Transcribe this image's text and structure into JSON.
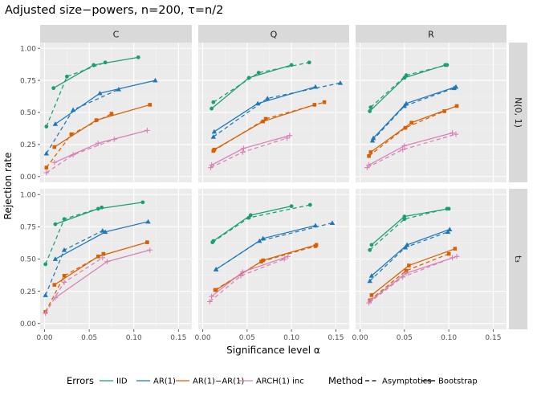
{
  "chart_data": {
    "type": "line",
    "title": "Adjusted size−powers, n=200, τ=n/2",
    "xlabel": "Significance level α",
    "ylabel": "Rejection rate",
    "xlim": [
      -0.005,
      0.165
    ],
    "ylim": [
      -0.045,
      1.045
    ],
    "x_ticks": [
      0.0,
      0.05,
      0.1,
      0.15
    ],
    "x_tick_labels": [
      "0.00",
      "0.05",
      "0.10",
      "0.15"
    ],
    "y_ticks": [
      0.0,
      0.25,
      0.5,
      0.75,
      1.0
    ],
    "y_tick_labels": [
      "0.00",
      "0.25",
      "0.50",
      "0.75",
      "1.00"
    ],
    "grid": true,
    "facet_cols": [
      "C",
      "Q",
      "R"
    ],
    "facet_rows": [
      "N(0, 1)",
      "t₃"
    ],
    "legend": {
      "position": "bottom",
      "errors_title": "Errors",
      "method_title": "Method",
      "errors": [
        {
          "label": "IID",
          "color": "#1b9e77",
          "shape": "circle"
        },
        {
          "label": "AR(1)",
          "color": "#1f78b4",
          "shape": "triangle"
        },
        {
          "label": "AR(1)−AR(1)",
          "color": "#d95f02",
          "shape": "square"
        },
        {
          "label": "ARCH(1) inc",
          "color": "#d97fb6",
          "shape": "plus"
        }
      ],
      "methods": [
        {
          "label": "Asymptotics",
          "dash": true
        },
        {
          "label": "Bootstrap",
          "dash": false
        }
      ]
    },
    "panels": [
      {
        "row": 0,
        "col": 0,
        "series": [
          {
            "error": "IID",
            "method": "Bootstrap",
            "x": [
              0.01,
              0.055,
              0.105
            ],
            "y": [
              0.69,
              0.87,
              0.93
            ]
          },
          {
            "error": "IID",
            "method": "Asymptotics",
            "x": [
              0.002,
              0.025,
              0.068
            ],
            "y": [
              0.39,
              0.78,
              0.89
            ]
          },
          {
            "error": "AR(1)",
            "method": "Bootstrap",
            "x": [
              0.012,
              0.062,
              0.124
            ],
            "y": [
              0.41,
              0.65,
              0.75
            ]
          },
          {
            "error": "AR(1)",
            "method": "Asymptotics",
            "x": [
              0.002,
              0.032,
              0.083
            ],
            "y": [
              0.18,
              0.52,
              0.68
            ]
          },
          {
            "error": "AR(1)−AR(1)",
            "method": "Bootstrap",
            "x": [
              0.011,
              0.058,
              0.118
            ],
            "y": [
              0.23,
              0.44,
              0.56
            ]
          },
          {
            "error": "AR(1)−AR(1)",
            "method": "Asymptotics",
            "x": [
              0.002,
              0.03,
              0.075
            ],
            "y": [
              0.07,
              0.33,
              0.49
            ]
          },
          {
            "error": "ARCH(1) inc",
            "method": "Bootstrap",
            "x": [
              0.011,
              0.06,
              0.115
            ],
            "y": [
              0.11,
              0.26,
              0.36
            ]
          },
          {
            "error": "ARCH(1) inc",
            "method": "Asymptotics",
            "x": [
              0.002,
              0.032,
              0.078
            ],
            "y": [
              0.03,
              0.17,
              0.29
            ]
          }
        ]
      },
      {
        "row": 0,
        "col": 1,
        "series": [
          {
            "error": "IID",
            "method": "Bootstrap",
            "x": [
              0.01,
              0.052,
              0.1
            ],
            "y": [
              0.53,
              0.77,
              0.87
            ]
          },
          {
            "error": "IID",
            "method": "Asymptotics",
            "x": [
              0.012,
              0.063,
              0.12
            ],
            "y": [
              0.58,
              0.81,
              0.89
            ]
          },
          {
            "error": "AR(1)",
            "method": "Bootstrap",
            "x": [
              0.013,
              0.062,
              0.127
            ],
            "y": [
              0.35,
              0.57,
              0.7
            ]
          },
          {
            "error": "AR(1)",
            "method": "Asymptotics",
            "x": [
              0.012,
              0.073,
              0.155
            ],
            "y": [
              0.31,
              0.61,
              0.73
            ]
          },
          {
            "error": "AR(1)−AR(1)",
            "method": "Bootstrap",
            "x": [
              0.013,
              0.068,
              0.126
            ],
            "y": [
              0.21,
              0.43,
              0.56
            ]
          },
          {
            "error": "AR(1)−AR(1)",
            "method": "Asymptotics",
            "x": [
              0.012,
              0.071,
              0.137
            ],
            "y": [
              0.2,
              0.45,
              0.58
            ]
          },
          {
            "error": "ARCH(1) inc",
            "method": "Bootstrap",
            "x": [
              0.01,
              0.046,
              0.098
            ],
            "y": [
              0.09,
              0.22,
              0.32
            ]
          },
          {
            "error": "ARCH(1) inc",
            "method": "Asymptotics",
            "x": [
              0.009,
              0.045,
              0.095
            ],
            "y": [
              0.07,
              0.19,
              0.3
            ]
          }
        ]
      },
      {
        "row": 0,
        "col": 2,
        "series": [
          {
            "error": "IID",
            "method": "Bootstrap",
            "x": [
              0.011,
              0.05,
              0.096
            ],
            "y": [
              0.51,
              0.77,
              0.87
            ]
          },
          {
            "error": "IID",
            "method": "Asymptotics",
            "x": [
              0.012,
              0.052,
              0.098
            ],
            "y": [
              0.54,
              0.79,
              0.87
            ]
          },
          {
            "error": "AR(1)",
            "method": "Bootstrap",
            "x": [
              0.015,
              0.052,
              0.108
            ],
            "y": [
              0.3,
              0.57,
              0.7
            ]
          },
          {
            "error": "AR(1)",
            "method": "Asymptotics",
            "x": [
              0.014,
              0.05,
              0.106
            ],
            "y": [
              0.28,
              0.55,
              0.69
            ]
          },
          {
            "error": "AR(1)−AR(1)",
            "method": "Bootstrap",
            "x": [
              0.012,
              0.058,
              0.109
            ],
            "y": [
              0.19,
              0.42,
              0.55
            ]
          },
          {
            "error": "AR(1)−AR(1)",
            "method": "Asymptotics",
            "x": [
              0.01,
              0.051,
              0.095
            ],
            "y": [
              0.16,
              0.38,
              0.51
            ]
          },
          {
            "error": "ARCH(1) inc",
            "method": "Bootstrap",
            "x": [
              0.01,
              0.05,
              0.104
            ],
            "y": [
              0.09,
              0.24,
              0.34
            ]
          },
          {
            "error": "ARCH(1) inc",
            "method": "Asymptotics",
            "x": [
              0.008,
              0.048,
              0.108
            ],
            "y": [
              0.07,
              0.21,
              0.33
            ]
          }
        ]
      },
      {
        "row": 1,
        "col": 0,
        "series": [
          {
            "error": "IID",
            "method": "Bootstrap",
            "x": [
              0.012,
              0.06,
              0.11
            ],
            "y": [
              0.77,
              0.89,
              0.94
            ]
          },
          {
            "error": "IID",
            "method": "Asymptotics",
            "x": [
              0.001,
              0.022,
              0.064
            ],
            "y": [
              0.46,
              0.81,
              0.9
            ]
          },
          {
            "error": "AR(1)",
            "method": "Bootstrap",
            "x": [
              0.012,
              0.068,
              0.116
            ],
            "y": [
              0.5,
              0.71,
              0.79
            ]
          },
          {
            "error": "AR(1)",
            "method": "Asymptotics",
            "x": [
              0.001,
              0.022,
              0.065
            ],
            "y": [
              0.22,
              0.57,
              0.72
            ]
          },
          {
            "error": "AR(1)−AR(1)",
            "method": "Bootstrap",
            "x": [
              0.011,
              0.06,
              0.115
            ],
            "y": [
              0.3,
              0.52,
              0.63
            ]
          },
          {
            "error": "AR(1)−AR(1)",
            "method": "Asymptotics",
            "x": [
              0.001,
              0.022,
              0.066
            ],
            "y": [
              0.09,
              0.37,
              0.54
            ]
          },
          {
            "error": "ARCH(1) inc",
            "method": "Bootstrap",
            "x": [
              0.012,
              0.07,
              0.118
            ],
            "y": [
              0.2,
              0.48,
              0.57
            ]
          },
          {
            "error": "ARCH(1) inc",
            "method": "Asymptotics",
            "x": [
              0.001,
              0.022,
              0.065
            ],
            "y": [
              0.08,
              0.32,
              0.51
            ]
          }
        ]
      },
      {
        "row": 1,
        "col": 1,
        "series": [
          {
            "error": "IID",
            "method": "Bootstrap",
            "x": [
              0.012,
              0.054,
              0.1
            ],
            "y": [
              0.64,
              0.84,
              0.91
            ]
          },
          {
            "error": "IID",
            "method": "Asymptotics",
            "x": [
              0.011,
              0.052,
              0.121
            ],
            "y": [
              0.63,
              0.82,
              0.92
            ]
          },
          {
            "error": "AR(1)",
            "method": "Bootstrap",
            "x": [
              0.015,
              0.068,
              0.127
            ],
            "y": [
              0.42,
              0.66,
              0.76
            ]
          },
          {
            "error": "AR(1)",
            "method": "Asymptotics",
            "x": [
              0.015,
              0.064,
              0.146
            ],
            "y": [
              0.42,
              0.64,
              0.78
            ]
          },
          {
            "error": "AR(1)−AR(1)",
            "method": "Bootstrap",
            "x": [
              0.015,
              0.068,
              0.128
            ],
            "y": [
              0.26,
              0.49,
              0.61
            ]
          },
          {
            "error": "AR(1)−AR(1)",
            "method": "Asymptotics",
            "x": [
              0.014,
              0.066,
              0.127
            ],
            "y": [
              0.26,
              0.48,
              0.6
            ]
          },
          {
            "error": "ARCH(1) inc",
            "method": "Bootstrap",
            "x": [
              0.01,
              0.045,
              0.096
            ],
            "y": [
              0.21,
              0.4,
              0.52
            ]
          },
          {
            "error": "ARCH(1) inc",
            "method": "Asymptotics",
            "x": [
              0.008,
              0.043,
              0.092
            ],
            "y": [
              0.17,
              0.37,
              0.5
            ]
          }
        ]
      },
      {
        "row": 1,
        "col": 2,
        "series": [
          {
            "error": "IID",
            "method": "Bootstrap",
            "x": [
              0.013,
              0.05,
              0.1
            ],
            "y": [
              0.61,
              0.83,
              0.89
            ]
          },
          {
            "error": "IID",
            "method": "Asymptotics",
            "x": [
              0.011,
              0.05,
              0.098
            ],
            "y": [
              0.57,
              0.81,
              0.89
            ]
          },
          {
            "error": "AR(1)",
            "method": "Bootstrap",
            "x": [
              0.013,
              0.053,
              0.101
            ],
            "y": [
              0.37,
              0.61,
              0.73
            ]
          },
          {
            "error": "AR(1)",
            "method": "Asymptotics",
            "x": [
              0.011,
              0.051,
              0.099
            ],
            "y": [
              0.33,
              0.59,
              0.71
            ]
          },
          {
            "error": "AR(1)−AR(1)",
            "method": "Bootstrap",
            "x": [
              0.013,
              0.055,
              0.107
            ],
            "y": [
              0.22,
              0.45,
              0.58
            ]
          },
          {
            "error": "AR(1)−AR(1)",
            "method": "Asymptotics",
            "x": [
              0.011,
              0.052,
              0.1
            ],
            "y": [
              0.18,
              0.41,
              0.54
            ]
          },
          {
            "error": "ARCH(1) inc",
            "method": "Bootstrap",
            "x": [
              0.012,
              0.052,
              0.109
            ],
            "y": [
              0.18,
              0.39,
              0.52
            ]
          },
          {
            "error": "ARCH(1) inc",
            "method": "Asymptotics",
            "x": [
              0.01,
              0.048,
              0.104
            ],
            "y": [
              0.16,
              0.36,
              0.51
            ]
          }
        ]
      }
    ]
  }
}
